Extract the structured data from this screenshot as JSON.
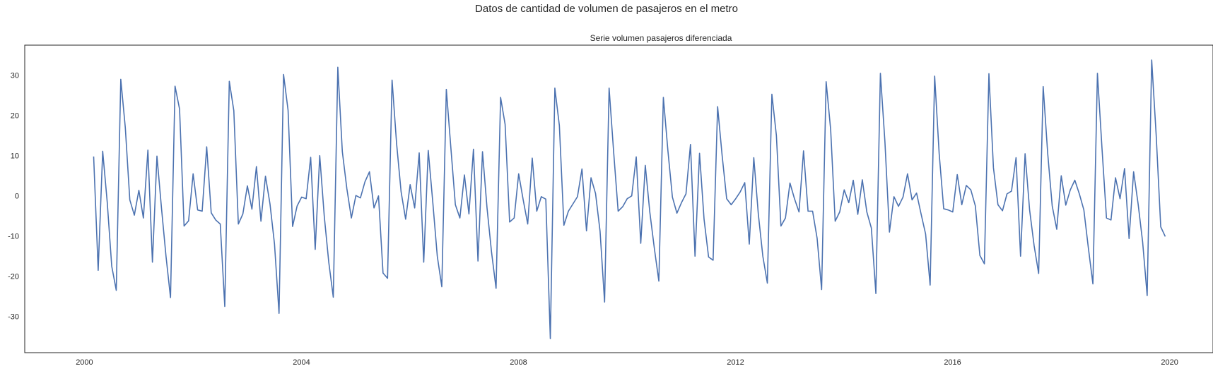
{
  "figure": {
    "suptitle": "Datos de cantidad de volumen de pasajeros en el metro"
  },
  "chart_data": {
    "type": "line",
    "title": "Serie volumen pasajeros diferenciada",
    "xlabel": "",
    "ylabel": "",
    "x_ticks": [
      "2000",
      "2004",
      "2008",
      "2012",
      "2016",
      "2020"
    ],
    "y_ticks": [
      -30,
      -20,
      -10,
      0,
      10,
      20,
      30
    ],
    "xlim": [
      1998.9,
      2020.8
    ],
    "ylim": [
      -39,
      37.5
    ],
    "x_start": 2000.17,
    "x_step_months": 1,
    "grid": false,
    "line_color": "#4c72b0",
    "series": [
      {
        "values": [
          9.8,
          -18.5,
          11.1,
          -1.5,
          -17.5,
          -23.5,
          29.0,
          17.0,
          -1.0,
          -4.8,
          1.4,
          -5.5,
          11.4,
          -16.5,
          9.9,
          -3.0,
          -15.0,
          -25.3,
          27.3,
          21.6,
          -7.5,
          -6.2,
          5.5,
          -3.5,
          -3.8,
          12.2,
          -4.2,
          -6.0,
          -7.0,
          -27.5,
          28.5,
          21.2,
          -7.0,
          -4.5,
          2.5,
          -3.3,
          7.3,
          -6.3,
          4.9,
          -2.0,
          -12.0,
          -29.2,
          30.2,
          21.3,
          -7.6,
          -2.5,
          -0.3,
          -0.7,
          9.6,
          -13.3,
          10.0,
          -5.0,
          -16.5,
          -25.2,
          32.0,
          11.0,
          1.8,
          -5.5,
          0.1,
          -0.5,
          3.5,
          6.0,
          -3.0,
          0.0,
          -19.2,
          -20.5,
          28.8,
          13.0,
          1.0,
          -5.8,
          2.8,
          -3.0,
          10.7,
          -16.5,
          11.3,
          -1.5,
          -15.0,
          -22.6,
          26.5,
          12.0,
          -2.2,
          -5.5,
          5.2,
          -4.5,
          11.6,
          -16.2,
          11.0,
          -3.0,
          -14.0,
          -23.0,
          24.5,
          17.8,
          -6.5,
          -5.5,
          5.5,
          -1.0,
          -7.0,
          9.4,
          -3.8,
          -0.2,
          -0.8,
          -35.5,
          26.8,
          17.5,
          -7.3,
          -3.8,
          -2.0,
          -0.2,
          6.7,
          -8.7,
          4.5,
          0.6,
          -8.8,
          -26.4,
          26.8,
          11.0,
          -3.8,
          -2.7,
          -0.7,
          0.0,
          9.7,
          -11.8,
          7.6,
          -4.0,
          -13.0,
          -21.2,
          24.5,
          11.3,
          -0.3,
          -4.3,
          -1.7,
          0.5,
          12.8,
          -15.0,
          10.6,
          -5.8,
          -15.2,
          -16.0,
          22.2,
          10.0,
          -0.7,
          -2.2,
          -0.7,
          1.0,
          3.3,
          -12.0,
          9.5,
          -4.5,
          -15.0,
          -21.7,
          25.3,
          15.0,
          -7.5,
          -5.5,
          3.2,
          -0.7,
          -4.0,
          11.2,
          -3.8,
          -3.8,
          -10.5,
          -23.3,
          28.4,
          16.5,
          -6.3,
          -4.0,
          1.5,
          -1.7,
          3.9,
          -4.6,
          4.0,
          -4.0,
          -8.0,
          -24.3,
          30.5,
          13.5,
          -9.0,
          -0.2,
          -2.6,
          -0.3,
          5.5,
          -1.0,
          0.7,
          -4.5,
          -9.5,
          -22.2,
          29.8,
          10.5,
          -3.2,
          -3.5,
          -4.0,
          5.3,
          -2.2,
          2.6,
          1.5,
          -2.5,
          -14.8,
          -16.9,
          30.4,
          7.0,
          -2.2,
          -3.7,
          0.5,
          1.2,
          9.5,
          -15.0,
          10.5,
          -3.5,
          -12.4,
          -19.3,
          27.2,
          10.6,
          -2.5,
          -8.3,
          5.0,
          -2.3,
          1.5,
          3.9,
          0.5,
          -3.5,
          -13.0,
          -21.9,
          30.5,
          12.0,
          -5.5,
          -6.0,
          4.5,
          -0.7,
          6.8,
          -10.6,
          6.0,
          -2.0,
          -11.5,
          -24.8,
          33.8,
          15.0,
          -7.7,
          -10.1
        ]
      }
    ]
  }
}
